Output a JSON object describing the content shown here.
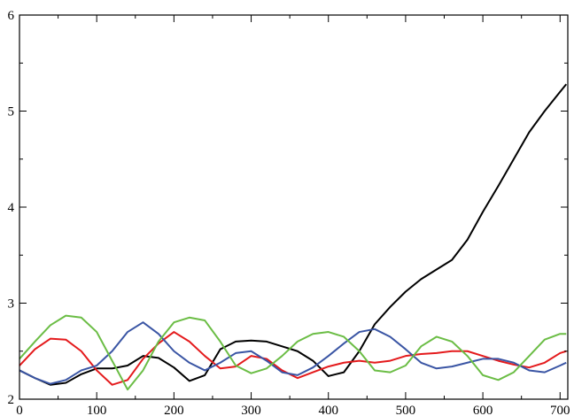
{
  "chart_data": {
    "type": "line",
    "title": "",
    "xlabel": "",
    "ylabel": "",
    "xlim": [
      0,
      710
    ],
    "ylim": [
      2,
      6
    ],
    "x_ticks": [
      0,
      100,
      200,
      300,
      400,
      500,
      600,
      700
    ],
    "y_ticks": [
      2,
      3,
      4,
      5,
      6
    ],
    "x_tick_labels": [
      "0",
      "100",
      "200",
      "300",
      "400",
      "500",
      "600",
      "700"
    ],
    "y_tick_labels": [
      "2",
      "3",
      "4",
      "5",
      "6"
    ],
    "grid": false,
    "legend": "none",
    "series": [
      {
        "color": "#000000",
        "x": [
          0,
          20,
          40,
          60,
          80,
          100,
          120,
          140,
          160,
          180,
          200,
          220,
          240,
          260,
          280,
          300,
          320,
          340,
          360,
          380,
          400,
          420,
          440,
          460,
          480,
          500,
          520,
          540,
          560,
          580,
          600,
          620,
          640,
          660,
          680,
          700,
          708
        ],
        "y": [
          2.3,
          2.22,
          2.15,
          2.17,
          2.26,
          2.32,
          2.32,
          2.35,
          2.45,
          2.43,
          2.33,
          2.19,
          2.25,
          2.52,
          2.6,
          2.61,
          2.6,
          2.55,
          2.5,
          2.4,
          2.24,
          2.28,
          2.5,
          2.78,
          2.96,
          3.12,
          3.25,
          3.35,
          3.45,
          3.66,
          3.95,
          4.22,
          4.5,
          4.78,
          5.0,
          5.2,
          5.28
        ]
      },
      {
        "color": "#e41a1c",
        "x": [
          0,
          20,
          40,
          60,
          80,
          100,
          120,
          140,
          160,
          180,
          200,
          220,
          240,
          260,
          280,
          300,
          320,
          340,
          360,
          380,
          400,
          420,
          440,
          460,
          480,
          500,
          520,
          540,
          560,
          580,
          600,
          620,
          640,
          660,
          680,
          700,
          708
        ],
        "y": [
          2.35,
          2.52,
          2.63,
          2.62,
          2.5,
          2.3,
          2.15,
          2.2,
          2.42,
          2.58,
          2.7,
          2.6,
          2.45,
          2.32,
          2.34,
          2.45,
          2.42,
          2.3,
          2.22,
          2.28,
          2.34,
          2.38,
          2.4,
          2.38,
          2.4,
          2.45,
          2.47,
          2.48,
          2.5,
          2.5,
          2.45,
          2.4,
          2.36,
          2.33,
          2.38,
          2.48,
          2.5
        ]
      },
      {
        "color": "#3a55a4",
        "x": [
          0,
          20,
          40,
          60,
          80,
          100,
          120,
          140,
          160,
          180,
          200,
          220,
          240,
          260,
          280,
          300,
          320,
          340,
          360,
          380,
          400,
          420,
          440,
          460,
          480,
          500,
          520,
          540,
          560,
          580,
          600,
          620,
          640,
          660,
          680,
          700,
          708
        ],
        "y": [
          2.3,
          2.22,
          2.16,
          2.2,
          2.3,
          2.35,
          2.5,
          2.7,
          2.8,
          2.68,
          2.5,
          2.38,
          2.3,
          2.38,
          2.48,
          2.5,
          2.4,
          2.28,
          2.25,
          2.33,
          2.45,
          2.58,
          2.7,
          2.73,
          2.65,
          2.52,
          2.38,
          2.32,
          2.34,
          2.38,
          2.42,
          2.42,
          2.38,
          2.3,
          2.28,
          2.35,
          2.38
        ]
      },
      {
        "color": "#6bbd45",
        "x": [
          0,
          20,
          40,
          60,
          80,
          100,
          120,
          140,
          160,
          180,
          200,
          220,
          240,
          260,
          280,
          300,
          320,
          340,
          360,
          380,
          400,
          420,
          440,
          460,
          480,
          500,
          520,
          540,
          560,
          580,
          600,
          620,
          640,
          660,
          680,
          700,
          708
        ],
        "y": [
          2.42,
          2.6,
          2.77,
          2.87,
          2.85,
          2.7,
          2.4,
          2.1,
          2.3,
          2.6,
          2.8,
          2.85,
          2.82,
          2.6,
          2.35,
          2.27,
          2.32,
          2.45,
          2.6,
          2.68,
          2.7,
          2.65,
          2.5,
          2.3,
          2.28,
          2.35,
          2.55,
          2.65,
          2.6,
          2.45,
          2.25,
          2.2,
          2.28,
          2.45,
          2.62,
          2.68,
          2.68
        ]
      }
    ]
  }
}
